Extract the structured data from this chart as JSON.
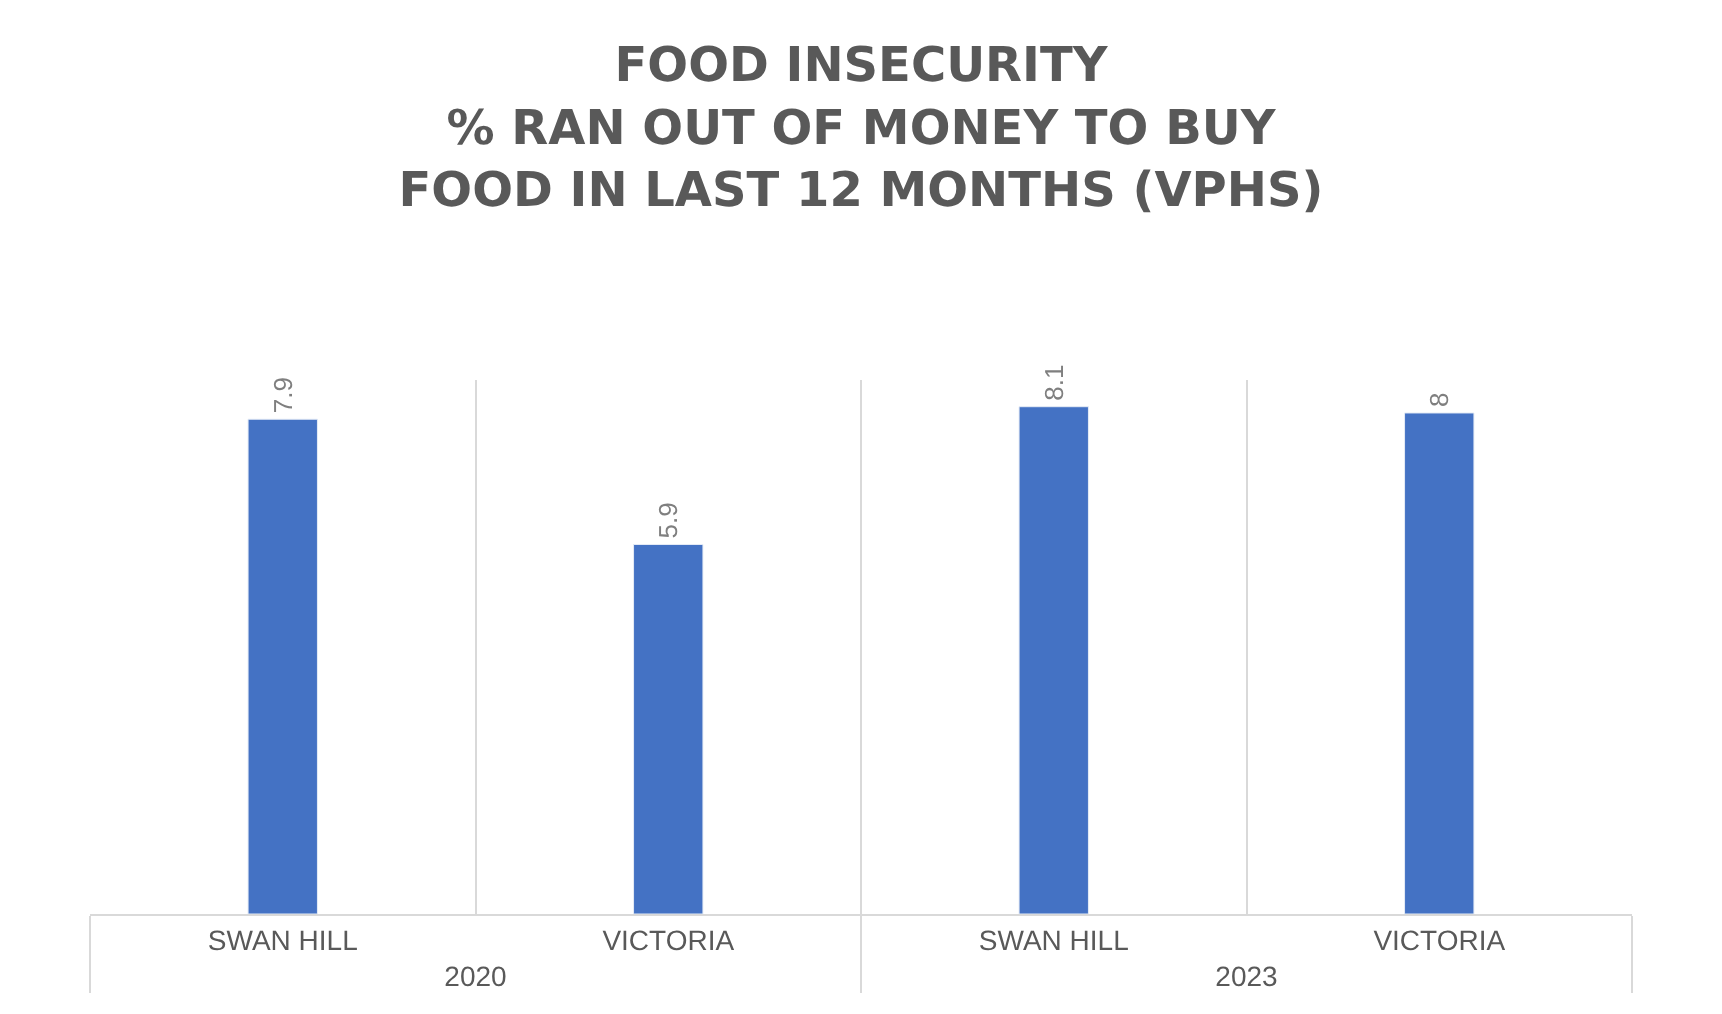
{
  "chart_data": {
    "type": "bar",
    "title": "FOOD INSECURITY\n% RAN OUT OF MONEY TO BUY\nFOOD IN LAST 12 MONTHS (VPHS)",
    "categories": [
      "SWAN HILL",
      "VICTORIA",
      "SWAN HILL",
      "VICTORIA"
    ],
    "annotations": [
      "2020",
      "2023"
    ],
    "values": [
      7.9,
      5.9,
      8.1,
      8
    ],
    "color": "#4472c4",
    "data_labels": true,
    "grid": "x",
    "tick_labels": "x"
  }
}
